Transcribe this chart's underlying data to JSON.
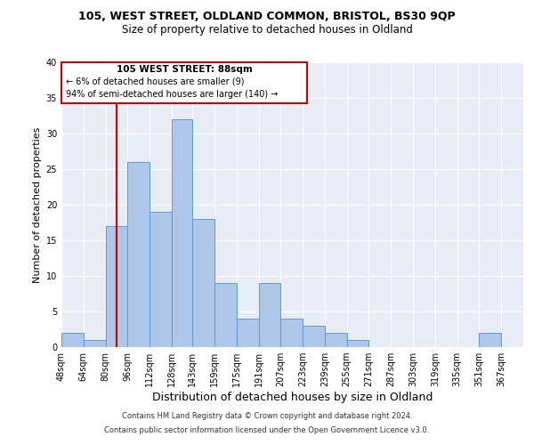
{
  "title1": "105, WEST STREET, OLDLAND COMMON, BRISTOL, BS30 9QP",
  "title2": "Size of property relative to detached houses in Oldland",
  "xlabel": "Distribution of detached houses by size in Oldland",
  "ylabel": "Number of detached properties",
  "bin_labels": [
    "48sqm",
    "64sqm",
    "80sqm",
    "96sqm",
    "112sqm",
    "128sqm",
    "143sqm",
    "159sqm",
    "175sqm",
    "191sqm",
    "207sqm",
    "223sqm",
    "239sqm",
    "255sqm",
    "271sqm",
    "287sqm",
    "303sqm",
    "319sqm",
    "335sqm",
    "351sqm",
    "367sqm"
  ],
  "bin_edges": [
    48,
    64,
    80,
    96,
    112,
    128,
    143,
    159,
    175,
    191,
    207,
    223,
    239,
    255,
    271,
    287,
    303,
    319,
    335,
    351,
    367
  ],
  "bar_heights": [
    2,
    1,
    17,
    26,
    19,
    32,
    18,
    9,
    4,
    9,
    4,
    3,
    2,
    1,
    0,
    0,
    0,
    0,
    0,
    2
  ],
  "bar_color": "#aec6e8",
  "bar_edge_color": "#5b9bd5",
  "property_size": 88,
  "red_line_color": "#cc0000",
  "annotation_title": "105 WEST STREET: 88sqm",
  "annotation_line1": "← 6% of detached houses are smaller (9)",
  "annotation_line2": "94% of semi-detached houses are larger (140) →",
  "annotation_box_color": "#cc0000",
  "ylim": [
    0,
    40
  ],
  "yticks": [
    0,
    5,
    10,
    15,
    20,
    25,
    30,
    35,
    40
  ],
  "footer1": "Contains HM Land Registry data © Crown copyright and database right 2024.",
  "footer2": "Contains public sector information licensed under the Open Government Licence v3.0.",
  "plot_bg_color": "#e8edf5",
  "fig_bg_color": "#ffffff",
  "title1_fontsize": 9,
  "title2_fontsize": 8.5,
  "xlabel_fontsize": 9,
  "ylabel_fontsize": 8,
  "tick_fontsize": 7,
  "footer_fontsize": 6
}
